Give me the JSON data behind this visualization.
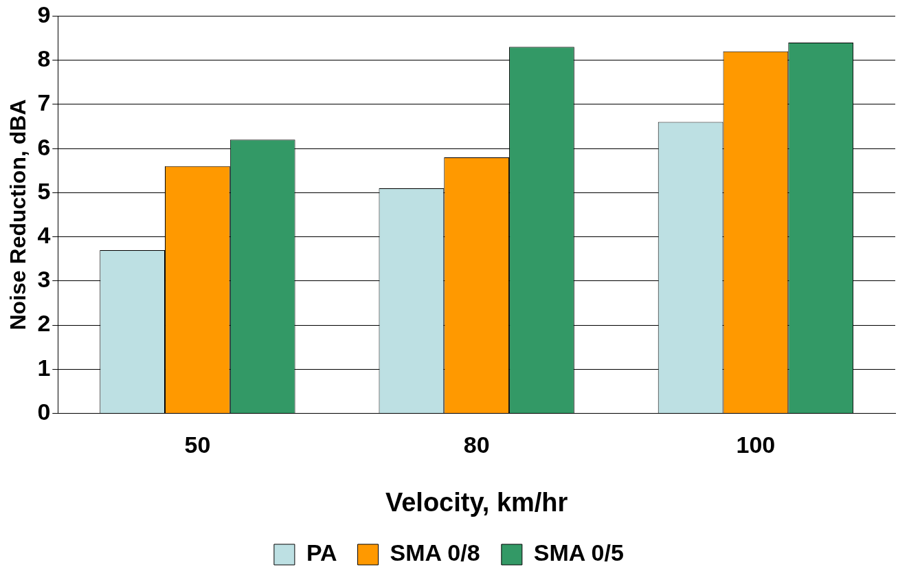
{
  "chart_data": {
    "type": "bar",
    "xlabel": "Velocity, km/hr",
    "ylabel": "Noise Reduction, dBA",
    "categories": [
      "50",
      "80",
      "100"
    ],
    "series": [
      {
        "name": "PA",
        "color": "#bde0e3",
        "values": [
          3.7,
          5.1,
          6.6
        ]
      },
      {
        "name": "SMA 0/8",
        "color": "#ff9900",
        "values": [
          5.6,
          5.8,
          8.2
        ]
      },
      {
        "name": "SMA 0/5",
        "color": "#339966",
        "values": [
          6.2,
          8.3,
          8.4
        ]
      }
    ],
    "ylim": [
      0,
      9
    ],
    "yticks": [
      0,
      1,
      2,
      3,
      4,
      5,
      6,
      7,
      8,
      9
    ],
    "grid": "y",
    "legend": "bottom"
  }
}
